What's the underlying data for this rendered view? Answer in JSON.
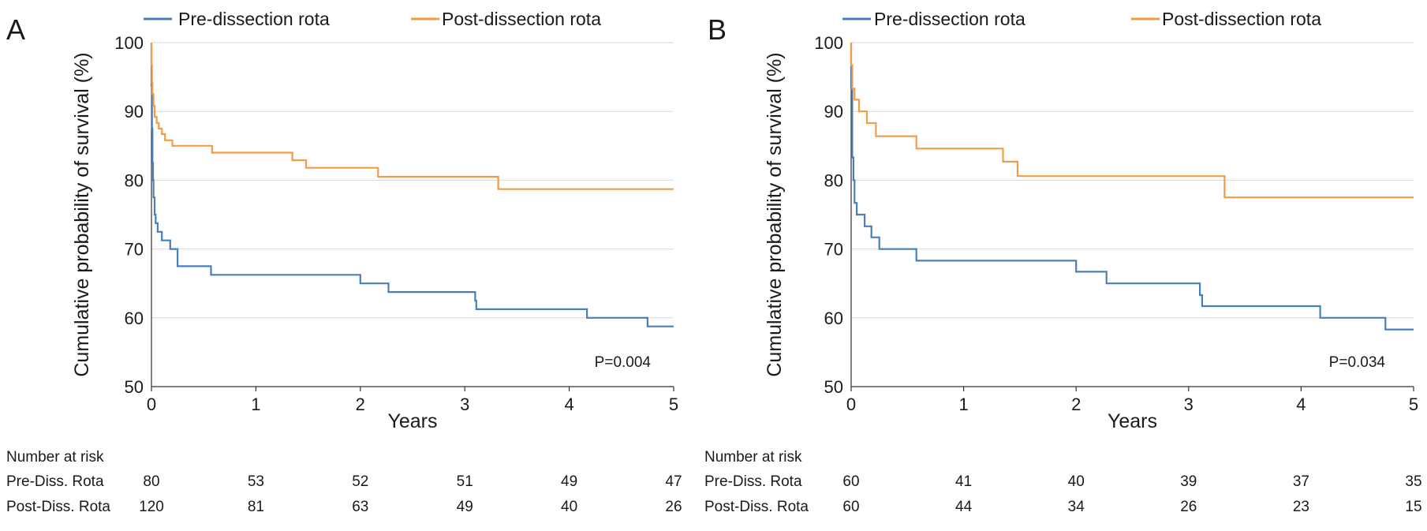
{
  "colors": {
    "pre": "#4a7ebb",
    "post": "#f39c45",
    "grid": "#d9d9d9",
    "axis": "#333333"
  },
  "chart_data": [
    {
      "type": "line",
      "panel_label": "A",
      "xlabel": "Years",
      "ylabel": "Cumulative probability of survival (%)",
      "xlim": [
        0,
        5
      ],
      "ylim": [
        50,
        100
      ],
      "x_ticks": [
        0,
        1,
        2,
        3,
        4,
        5
      ],
      "y_ticks": [
        50,
        60,
        70,
        80,
        90,
        100
      ],
      "grid": "horizontal",
      "legend_position": "top",
      "annotation": "P=0.004",
      "series": [
        {
          "name": "Pre-dissection rota",
          "color": "#4a7ebb",
          "step_points": [
            [
              0,
              100
            ],
            [
              0,
              93.75
            ],
            [
              0.005,
              87.5
            ],
            [
              0.01,
              82.5
            ],
            [
              0.015,
              80
            ],
            [
              0.02,
              77.5
            ],
            [
              0.03,
              75
            ],
            [
              0.04,
              73.75
            ],
            [
              0.06,
              72.5
            ],
            [
              0.1,
              71.25
            ],
            [
              0.18,
              70
            ],
            [
              0.25,
              67.5
            ],
            [
              0.57,
              66.25
            ],
            [
              2,
              65
            ],
            [
              2.27,
              63.75
            ],
            [
              3.1,
              62.5
            ],
            [
              3.11,
              61.25
            ],
            [
              4.17,
              60
            ],
            [
              4.75,
              58.75
            ],
            [
              5,
              58.75
            ]
          ]
        },
        {
          "name": "Post-dissection rota",
          "color": "#f39c45",
          "step_points": [
            [
              0,
              100
            ],
            [
              0,
              96.7
            ],
            [
              0.005,
              94.2
            ],
            [
              0.01,
              92.5
            ],
            [
              0.02,
              90.8
            ],
            [
              0.03,
              89.2
            ],
            [
              0.05,
              88.3
            ],
            [
              0.07,
              87.5
            ],
            [
              0.1,
              86.7
            ],
            [
              0.13,
              85.8
            ],
            [
              0.2,
              85
            ],
            [
              0.58,
              84
            ],
            [
              1.35,
              82.9
            ],
            [
              1.48,
              81.8
            ],
            [
              2.17,
              80.5
            ],
            [
              3.32,
              78.7
            ],
            [
              5,
              78.7
            ]
          ]
        }
      ],
      "risk_table": {
        "title": "Number at risk",
        "x": [
          0,
          1,
          2,
          3,
          4,
          5
        ],
        "rows": [
          {
            "label": "Pre-Diss. Rota",
            "values": [
              "80",
              "53",
              "52",
              "51",
              "49",
              "47"
            ]
          },
          {
            "label": "Post-Diss. Rota",
            "values": [
              "120",
              "81",
              "63",
              "49",
              "40",
              "26"
            ]
          }
        ]
      }
    },
    {
      "type": "line",
      "panel_label": "B",
      "xlabel": "Years",
      "ylabel": "Cumulative probability of survival (%)",
      "xlim": [
        0,
        5
      ],
      "ylim": [
        50,
        100
      ],
      "x_ticks": [
        0,
        1,
        2,
        3,
        4,
        5
      ],
      "y_ticks": [
        50,
        60,
        70,
        80,
        90,
        100
      ],
      "grid": "horizontal",
      "legend_position": "top",
      "annotation": "P=0.034",
      "series": [
        {
          "name": "Pre-dissection rota",
          "color": "#4a7ebb",
          "step_points": [
            [
              0,
              100
            ],
            [
              0,
              93.3
            ],
            [
              0.01,
              83.3
            ],
            [
              0.02,
              80
            ],
            [
              0.03,
              76.7
            ],
            [
              0.05,
              75
            ],
            [
              0.12,
              73.3
            ],
            [
              0.18,
              71.7
            ],
            [
              0.25,
              70
            ],
            [
              0.58,
              68.3
            ],
            [
              2,
              66.7
            ],
            [
              2.27,
              65
            ],
            [
              3.1,
              63.3
            ],
            [
              3.12,
              61.7
            ],
            [
              4.17,
              60
            ],
            [
              4.75,
              58.3
            ],
            [
              5,
              58.3
            ]
          ]
        },
        {
          "name": "Post-dissection rota",
          "color": "#f39c45",
          "step_points": [
            [
              0,
              100
            ],
            [
              0,
              96.7
            ],
            [
              0.01,
              93.3
            ],
            [
              0.03,
              91.7
            ],
            [
              0.07,
              90
            ],
            [
              0.14,
              88.3
            ],
            [
              0.22,
              86.4
            ],
            [
              0.58,
              84.6
            ],
            [
              1.35,
              82.7
            ],
            [
              1.48,
              80.6
            ],
            [
              3.32,
              77.5
            ],
            [
              5,
              77.5
            ]
          ]
        }
      ],
      "risk_table": {
        "title": "Number at risk",
        "x": [
          0,
          1,
          2,
          3,
          4,
          5
        ],
        "rows": [
          {
            "label": "Pre-Diss. Rota",
            "values": [
              "60",
              "41",
              "40",
              "39",
              "37",
              "35"
            ]
          },
          {
            "label": "Post-Diss. Rota",
            "values": [
              "60",
              "44",
              "34",
              "26",
              "23",
              "15"
            ]
          }
        ]
      }
    }
  ]
}
